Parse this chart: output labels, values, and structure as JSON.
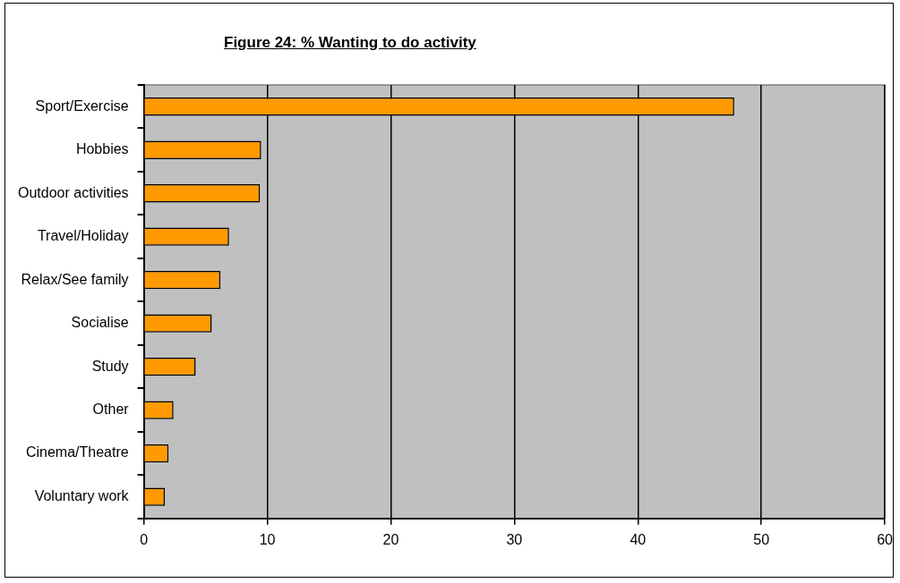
{
  "chart_data": {
    "type": "bar",
    "orientation": "horizontal",
    "title": "Figure 24: % Wanting to do activity",
    "categories": [
      "Sport/Exercise",
      "Hobbies",
      "Outdoor activities",
      "Travel/Holiday",
      "Relax/See family",
      "Socialise",
      "Study",
      "Other",
      "Cinema/Theatre",
      "Voluntary work"
    ],
    "values": [
      47.8,
      9.5,
      9.4,
      6.9,
      6.2,
      5.5,
      4.2,
      2.4,
      2.0,
      1.7
    ],
    "color": "#ff9900",
    "xlim": [
      0,
      60
    ],
    "xticks": [
      0,
      10,
      20,
      30,
      40,
      50,
      60
    ],
    "grid": "x",
    "legend": false
  }
}
